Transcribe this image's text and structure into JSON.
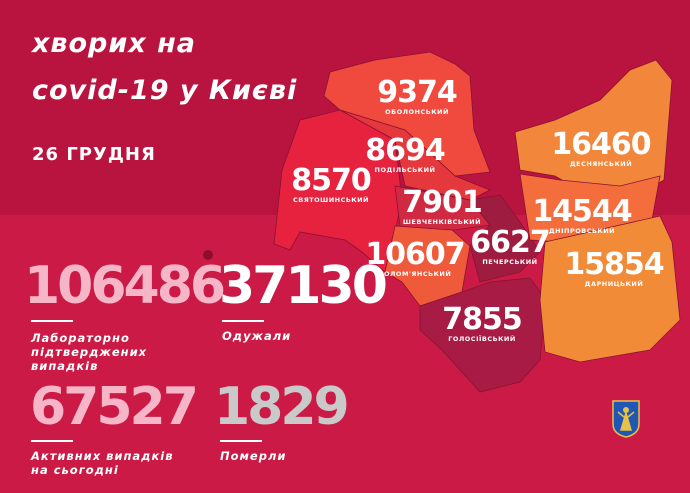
{
  "header": {
    "title_line1": "хворих на",
    "title_line2": "covid-19 у Києві",
    "date": "26 ГРУДНЯ"
  },
  "districts": [
    {
      "name": "ОБОЛОНСЬКИЙ",
      "cases": "9374",
      "color": "#f04a3e"
    },
    {
      "name": "ПОДІЛЬСЬКИЙ",
      "cases": "8694",
      "color": "#e5383c"
    },
    {
      "name": "СВЯТОШИНСЬКИЙ",
      "cases": "8570",
      "color": "#e6223f"
    },
    {
      "name": "ШЕВЧЕНКІВСЬКИЙ",
      "cases": "7901",
      "color": "#d02a42"
    },
    {
      "name": "СОЛОМ'ЯНСЬКИЙ",
      "cases": "10607",
      "color": "#ef5a3a"
    },
    {
      "name": "ПЕЧЕРСЬКИЙ",
      "cases": "6627",
      "color": "#9e1c3f"
    },
    {
      "name": "ГОЛОСІЇВСЬКИЙ",
      "cases": "7855",
      "color": "#a81b45"
    },
    {
      "name": "ДЕСНЯНСЬКИЙ",
      "cases": "16460",
      "color": "#f2863a"
    },
    {
      "name": "ДНІПРОВСЬКИЙ",
      "cases": "14544",
      "color": "#f46e3d"
    },
    {
      "name": "ДАРНИЦЬКИЙ",
      "cases": "15854",
      "color": "#f28b38"
    }
  ],
  "stats": {
    "confirmed": {
      "value": "106486",
      "label_1": "Лабораторно",
      "label_2": "підтверджених",
      "label_3": "випадків",
      "color": "#f7b6c8"
    },
    "recovered": {
      "value": "37130",
      "label": "Одужали",
      "color": "#ffffff"
    },
    "active": {
      "value": "67527",
      "label_1": "Активних випадків",
      "label_2": "на сьогодні",
      "color": "#f7b6c8"
    },
    "deaths": {
      "value": "1829",
      "label": "Померли",
      "color": "#c9c9c9"
    }
  }
}
